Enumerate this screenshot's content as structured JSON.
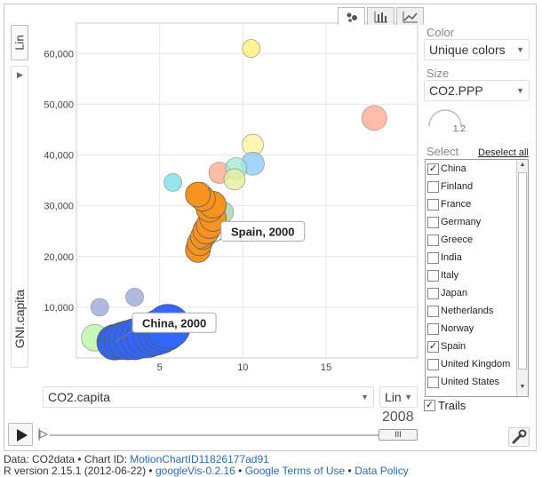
{
  "chart_data": {
    "type": "scatter",
    "title": "",
    "xlabel": "CO2.capita",
    "ylabel": "GNI.capita",
    "x_scale": "Lin",
    "y_scale": "Lin",
    "xlim": [
      0,
      20.5
    ],
    "ylim": [
      0,
      66000
    ],
    "x_ticks": [
      5,
      10,
      15
    ],
    "y_ticks": [
      10000,
      20000,
      30000,
      40000,
      50000,
      60000
    ],
    "x_tick_labels": [
      "5",
      "10",
      "15"
    ],
    "y_tick_labels": [
      "10,000",
      "20,000",
      "30,000",
      "40,000",
      "50,000",
      "60,000"
    ],
    "grid": true,
    "time": "2008",
    "size_variable": "CO2.PPP",
    "color_mode": "Unique colors",
    "points": [
      {
        "x": 10.5,
        "y": 61000,
        "size": 1.0,
        "color": "#fff176"
      },
      {
        "x": 17.9,
        "y": 47300,
        "size": 1.4,
        "color": "#ffab91"
      },
      {
        "x": 10.6,
        "y": 42000,
        "size": 1.2,
        "color": "#fff59d"
      },
      {
        "x": 8.6,
        "y": 36500,
        "size": 1.2,
        "color": "#ffab91"
      },
      {
        "x": 10.6,
        "y": 38300,
        "size": 1.3,
        "color": "#90caf9"
      },
      {
        "x": 9.6,
        "y": 37400,
        "size": 1.2,
        "color": "#a5e8d8"
      },
      {
        "x": 9.5,
        "y": 35200,
        "size": 1.2,
        "color": "#e6ee9c"
      },
      {
        "x": 5.8,
        "y": 34600,
        "size": 1.0,
        "color": "#80deea"
      },
      {
        "x": 7.5,
        "y": 32700,
        "size": 1.1,
        "color": "#dce775"
      },
      {
        "x": 8.8,
        "y": 28700,
        "size": 1.2,
        "color": "#a5d6a7"
      },
      {
        "x": 3.5,
        "y": 12000,
        "size": 1.0,
        "color": "#9fa8da"
      },
      {
        "x": 1.4,
        "y": 10000,
        "size": 1.0,
        "color": "#9fa8da"
      },
      {
        "x": 1.1,
        "y": 4000,
        "size": 1.5,
        "color": "#b9f6a5"
      }
    ],
    "trails": [
      {
        "name": "Spain",
        "color": "#f7931e",
        "points": [
          {
            "x": 7.3,
            "y": 21300,
            "size": 1.4
          },
          {
            "x": 7.4,
            "y": 22600,
            "size": 1.4
          },
          {
            "x": 7.6,
            "y": 23900,
            "size": 1.4
          },
          {
            "x": 7.8,
            "y": 25100,
            "size": 1.5
          },
          {
            "x": 8.0,
            "y": 26200,
            "size": 1.5
          },
          {
            "x": 8.2,
            "y": 27600,
            "size": 1.5
          },
          {
            "x": 8.0,
            "y": 29400,
            "size": 1.5
          },
          {
            "x": 8.2,
            "y": 30200,
            "size": 1.5
          },
          {
            "x": 7.6,
            "y": 31400,
            "size": 1.4
          },
          {
            "x": 7.3,
            "y": 32200,
            "size": 1.4
          }
        ]
      },
      {
        "name": "China",
        "color": "#3366ff",
        "points": [
          {
            "x": 2.3,
            "y": 3100,
            "size": 2.0
          },
          {
            "x": 2.5,
            "y": 3200,
            "size": 2.0
          },
          {
            "x": 2.8,
            "y": 3400,
            "size": 2.1
          },
          {
            "x": 3.1,
            "y": 3500,
            "size": 2.2
          },
          {
            "x": 3.5,
            "y": 3700,
            "size": 2.3
          },
          {
            "x": 3.9,
            "y": 4000,
            "size": 2.3
          },
          {
            "x": 4.3,
            "y": 4300,
            "size": 2.4
          },
          {
            "x": 4.7,
            "y": 4700,
            "size": 2.4
          },
          {
            "x": 5.0,
            "y": 5200,
            "size": 2.5
          },
          {
            "x": 5.3,
            "y": 5700,
            "size": 2.5
          },
          {
            "x": 5.5,
            "y": 6200,
            "size": 2.5
          }
        ]
      }
    ],
    "annotations": [
      {
        "text": "Spain, 2000",
        "x": 7.3,
        "y": 21300
      },
      {
        "text": "China, 2000",
        "x": 2.3,
        "y": 3100
      }
    ]
  },
  "controls": {
    "y_scale_label": "Lin",
    "x_scale_label": "Lin",
    "x_axis_label": "CO2.capita",
    "y_axis_label": "GNI.capita",
    "color_label": "Color",
    "color_value": "Unique colors",
    "size_label": "Size",
    "size_value": "CO2.PPP",
    "size_dial_value": "1.2",
    "select_label": "Select",
    "deselect_all": "Deselect all",
    "trails_label": "Trails",
    "time_label": "2008",
    "thumb_glyph": "III",
    "countries": [
      {
        "name": "China",
        "checked": true
      },
      {
        "name": "Finland",
        "checked": false
      },
      {
        "name": "France",
        "checked": false
      },
      {
        "name": "Germany",
        "checked": false
      },
      {
        "name": "Greece",
        "checked": false
      },
      {
        "name": "India",
        "checked": false
      },
      {
        "name": "Italy",
        "checked": false
      },
      {
        "name": "Japan",
        "checked": false
      },
      {
        "name": "Netherlands",
        "checked": false
      },
      {
        "name": "Norway",
        "checked": false
      },
      {
        "name": "Spain",
        "checked": true
      },
      {
        "name": "United Kingdom",
        "checked": false
      },
      {
        "name": "United States",
        "checked": false
      }
    ]
  },
  "footer": {
    "data_prefix": "Data: CO2data • Chart ID: ",
    "chart_id": "MotionChartID11826177ad91",
    "r_version": "R version 2.15.1 (2012-06-22) • ",
    "googlevis": "googleVis-0.2.16",
    "sep": " • ",
    "terms": "Google Terms of Use",
    "policy": "Data Policy"
  },
  "colors": {
    "trail_spain": "#f7931e",
    "trail_china": "#3366ff"
  }
}
